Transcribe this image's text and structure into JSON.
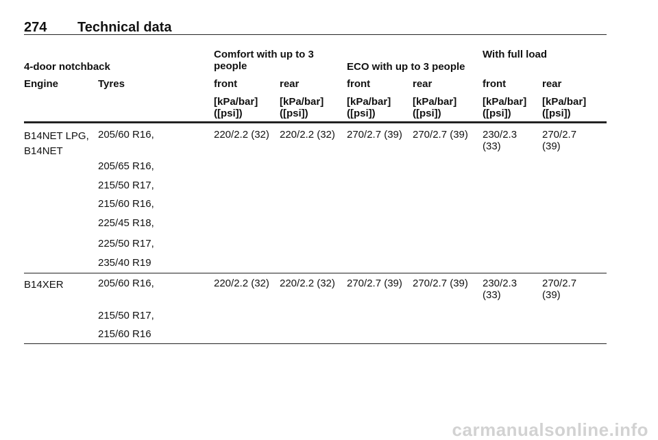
{
  "header": {
    "page_number": "274",
    "title": "Technical data"
  },
  "table": {
    "caption": "4-door notchback",
    "groups": [
      "Comfort with up to 3 people",
      "ECO with up to 3 people",
      "With full load"
    ],
    "columns": [
      "Engine",
      "Tyres",
      "front",
      "rear",
      "front",
      "rear",
      "front",
      "rear"
    ],
    "units": [
      "[kPa/bar] ([psi])",
      "[kPa/bar] ([psi])",
      "[kPa/bar] ([psi])",
      "[kPa/bar] ([psi])",
      "[kPa/bar] ([psi])",
      "[kPa/bar] ([psi])"
    ],
    "rows": [
      {
        "engine": "B14NET LPG, B14NET",
        "tyres": [
          "205/60 R16,",
          "205/65 R16,",
          "215/50 R17,",
          "215/60 R16,",
          "225/45 R18,",
          "225/50 R17,",
          "235/40 R19"
        ],
        "pressures": [
          "220/2.2 (32)",
          "220/2.2 (32)",
          "270/2.7 (39)",
          "270/2.7 (39)",
          "230/2.3 (33)",
          "270/2.7 (39)"
        ]
      },
      {
        "engine": "B14XER",
        "tyres": [
          "205/60 R16,",
          "215/50 R17,",
          "215/60 R16"
        ],
        "pressures": [
          "220/2.2 (32)",
          "220/2.2 (32)",
          "270/2.7 (39)",
          "270/2.7 (39)",
          "230/2.3 (33)",
          "270/2.7 (39)"
        ]
      }
    ]
  },
  "watermark": "carmanualsonline.info"
}
